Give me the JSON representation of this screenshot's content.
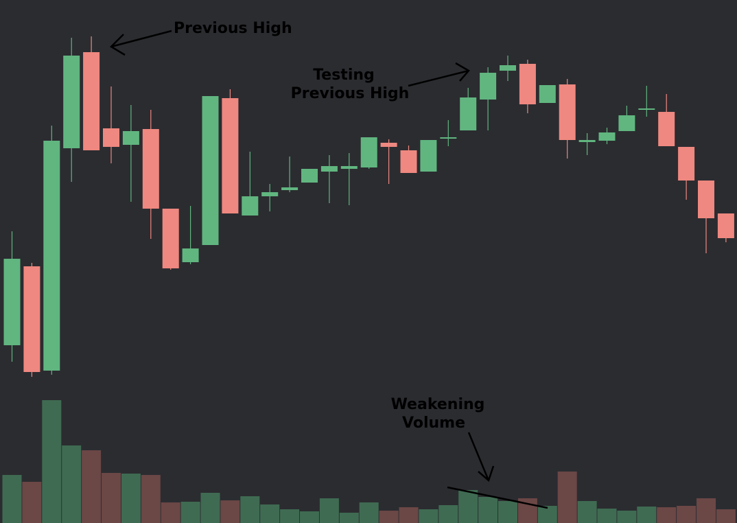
{
  "chart_data": {
    "type": "candlestick",
    "annotations": [
      [
        "Previous High"
      ],
      [
        "Testing",
        "Previous High"
      ],
      [
        "Weakening",
        "Volume"
      ]
    ],
    "open": [
      259,
      374,
      222,
      546,
      686,
      575,
      551,
      574,
      458,
      380,
      405,
      619,
      448,
      476,
      485,
      496,
      512,
      516,
      518,
      554,
      543,
      512,
      560,
      572,
      617,
      659,
      669,
      612,
      639,
      555,
      557,
      571,
      602,
      599,
      548,
      499,
      451
    ],
    "high": [
      425,
      379,
      579,
      707,
      709,
      636,
      609,
      602,
      458,
      462,
      622,
      632,
      541,
      494,
      534,
      516,
      536,
      539,
      562,
      559,
      550,
      558,
      587,
      634,
      664,
      681,
      675,
      638,
      647,
      568,
      576,
      608,
      637,
      625,
      548,
      499,
      451
    ],
    "low": [
      235,
      213,
      216,
      497,
      543,
      524,
      468,
      414,
      369,
      377,
      405,
      451,
      448,
      454,
      482,
      496,
      466,
      463,
      516,
      494,
      510,
      512,
      549,
      572,
      572,
      644,
      597,
      612,
      531,
      536,
      552,
      571,
      592,
      549,
      471,
      393,
      409
    ],
    "close": [
      385,
      220,
      557,
      681,
      543,
      548,
      571,
      458,
      371,
      400,
      622,
      451,
      476,
      482,
      489,
      516,
      520,
      520,
      562,
      548,
      510,
      558,
      562,
      620,
      656,
      667,
      610,
      638,
      558,
      558,
      569,
      594,
      604,
      549,
      499,
      444,
      415
    ],
    "volume": [
      70,
      60,
      179,
      113,
      106,
      73,
      72,
      70,
      30,
      31,
      44,
      33,
      39,
      27,
      20,
      17,
      36,
      15,
      30,
      18,
      23,
      20,
      26,
      48,
      38,
      32,
      36,
      25,
      75,
      32,
      21,
      18,
      24,
      23,
      25,
      36,
      20
    ],
    "ylim": [
      0,
      762
    ],
    "volume_ylim": [
      0,
      200
    ],
    "up_color": "#61b680",
    "down_color": "#ef8880",
    "volume_up_color": "#3f6b52",
    "volume_down_color": "#6b4746"
  }
}
